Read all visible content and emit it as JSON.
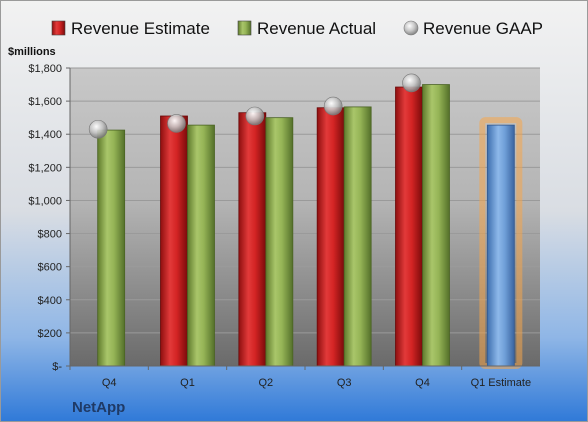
{
  "company": "NetApp",
  "unit_label": "$millions",
  "colors": {
    "estimate": "#c81e1e",
    "actual": "#8fae4e",
    "gaap": "#a9a9a9",
    "projected": "#6f9fd8",
    "projected_glow": "#f5a54a",
    "background_top": "#e8e8e8",
    "background_bottom": "#2f79d8"
  },
  "legend": [
    {
      "key": "estimate",
      "label": "Revenue Estimate",
      "icon": "red-square-icon"
    },
    {
      "key": "actual",
      "label": "Revenue Actual",
      "icon": "green-square-icon"
    },
    {
      "key": "gaap",
      "label": "Revenue GAAP",
      "icon": "gray-circle-icon"
    }
  ],
  "chart_data": {
    "type": "bar",
    "categories": [
      "Q4",
      "Q1",
      "Q2",
      "Q3",
      "Q4",
      "Q1 Estimate"
    ],
    "series": [
      {
        "name": "Revenue Estimate",
        "key": "estimate",
        "values": [
          null,
          1510,
          1530,
          1560,
          1685,
          null
        ]
      },
      {
        "name": "Revenue Actual",
        "key": "actual",
        "values": [
          1425,
          1455,
          1500,
          1565,
          1700,
          null
        ]
      },
      {
        "name": "Revenue GAAP",
        "key": "gaap",
        "type": "scatter",
        "values": [
          1430,
          1465,
          1510,
          1570,
          1710,
          null
        ]
      },
      {
        "key": "projected",
        "values": [
          null,
          null,
          null,
          null,
          null,
          1455
        ]
      }
    ],
    "ylabel": "$millions",
    "ylim": [
      0,
      1800
    ],
    "yticks": [
      0,
      200,
      400,
      600,
      800,
      1000,
      1200,
      1400,
      1600,
      1800
    ],
    "ytick_labels": [
      "$-",
      "$200",
      "$400",
      "$600",
      "$800",
      "$1,000",
      "$1,200",
      "$1,400",
      "$1,600",
      "$1,800"
    ],
    "grid": true,
    "legend_position": "top"
  }
}
